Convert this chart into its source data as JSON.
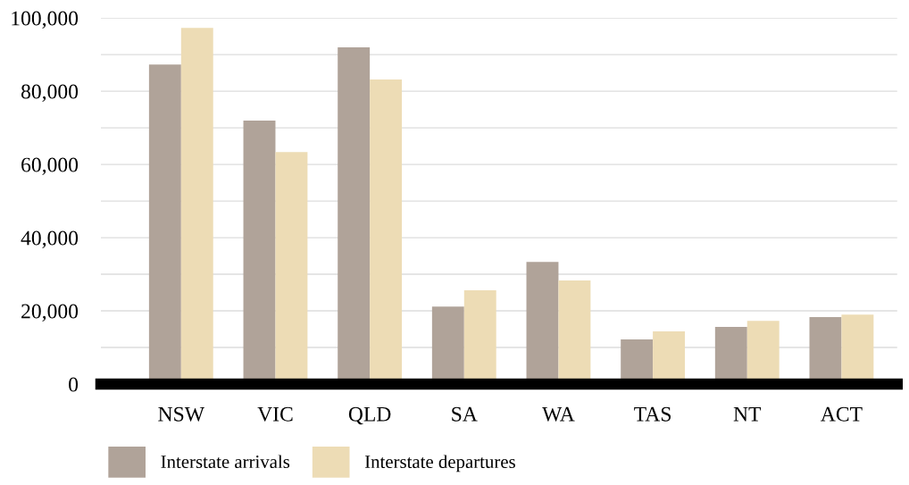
{
  "chart_data": {
    "type": "bar",
    "categories": [
      "NSW",
      "VIC",
      "QLD",
      "SA",
      "WA",
      "TAS",
      "NT",
      "ACT"
    ],
    "series": [
      {
        "name": "Interstate arrivals",
        "color": "#b0a399",
        "values": [
          87300,
          72000,
          92000,
          21200,
          33400,
          12200,
          15600,
          18300
        ]
      },
      {
        "name": "Interstate departures",
        "color": "#eddcb5",
        "values": [
          97300,
          63400,
          83200,
          25600,
          28300,
          14400,
          17300,
          19000
        ]
      }
    ],
    "ylim": [
      0,
      100000
    ],
    "yticks": [
      {
        "value": 0,
        "label": "0"
      },
      {
        "value": 10000,
        "label": null
      },
      {
        "value": 20000,
        "label": "20,000"
      },
      {
        "value": 30000,
        "label": null
      },
      {
        "value": 40000,
        "label": "40,000"
      },
      {
        "value": 50000,
        "label": null
      },
      {
        "value": 60000,
        "label": "60,000"
      },
      {
        "value": 70000,
        "label": null
      },
      {
        "value": 80000,
        "label": "80,000"
      },
      {
        "value": 90000,
        "label": null
      },
      {
        "value": 100000,
        "label": "100,000"
      }
    ],
    "grid": "y",
    "legend": "bottom"
  }
}
